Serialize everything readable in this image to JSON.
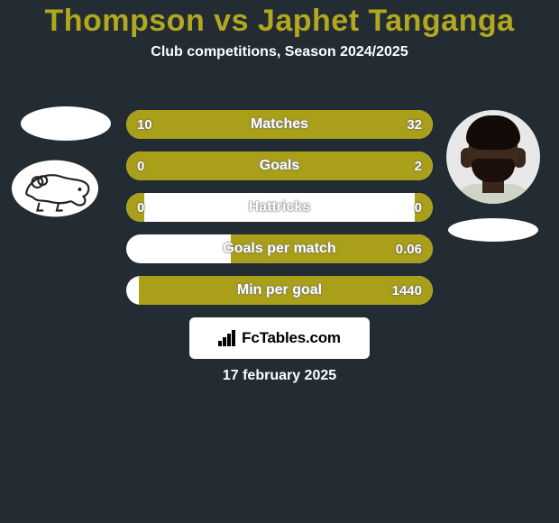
{
  "title": "Thompson vs Japhet Tanganga",
  "subtitle": "Club competitions, Season 2024/2025",
  "date": "17 february 2025",
  "logo_text": "FcTables.com",
  "colors": {
    "background": "#232c33",
    "accent": "#b2a71f",
    "bar_fill": "#aa9f19",
    "bar_bg": "#ffffff",
    "text": "#ffffff"
  },
  "stats": [
    {
      "label": "Matches",
      "left_value": "10",
      "right_value": "32",
      "left_pct": 26,
      "right_pct": 74
    },
    {
      "label": "Goals",
      "left_value": "0",
      "right_value": "2",
      "left_pct": 6,
      "right_pct": 94
    },
    {
      "label": "Hattricks",
      "left_value": "0",
      "right_value": "0",
      "left_pct": 6,
      "right_pct": 6
    },
    {
      "label": "Goals per match",
      "left_value": "",
      "right_value": "0.06",
      "left_pct": 0,
      "right_pct": 66
    },
    {
      "label": "Min per goal",
      "left_value": "",
      "right_value": "1440",
      "left_pct": 0,
      "right_pct": 96
    }
  ]
}
